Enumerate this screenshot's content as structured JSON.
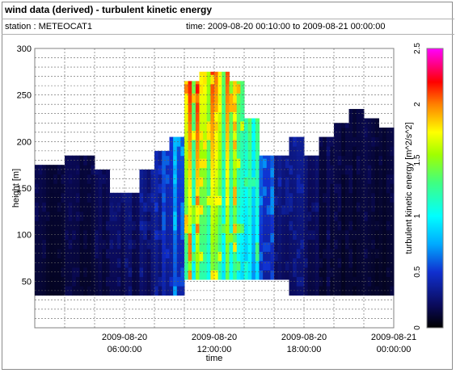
{
  "header": {
    "title": "wind data (derived) - turbulent kinetic energy",
    "station": "station : METEOCAT1",
    "time_range": "time: 2009-08-20 00:10:00 to 2009-08-21 00:00:00"
  },
  "chart_data": {
    "type": "heatmap",
    "xlabel": "time",
    "ylabel": "height [m]",
    "colorbar_label": "turbulent kinetic energy [m^2/s^2]",
    "xlim_hours": [
      0,
      24
    ],
    "ylim": [
      0,
      300
    ],
    "color_range": [
      0,
      2.5
    ],
    "grid": true,
    "x_ticks": [
      {
        "hour": 6,
        "line1": "2009-08-20",
        "line2": "06:00:00"
      },
      {
        "hour": 12,
        "line1": "2009-08-20",
        "line2": "12:00:00"
      },
      {
        "hour": 18,
        "line1": "2009-08-20",
        "line2": "18:00:00"
      },
      {
        "hour": 24,
        "line1": "2009-08-21",
        "line2": "00:00:00"
      }
    ],
    "y_ticks": [
      50,
      100,
      150,
      200,
      250,
      300
    ],
    "colorbar_ticks": [
      "0",
      "0.5",
      "1",
      "1.5",
      "2",
      "2.5"
    ],
    "columns_hours_start": [
      0,
      1,
      2,
      3,
      4,
      5,
      6,
      7,
      8,
      9,
      10,
      11,
      12,
      13,
      14,
      15,
      16,
      17,
      18,
      19,
      20,
      21,
      22,
      23
    ],
    "bottom_height": [
      35,
      35,
      35,
      35,
      35,
      35,
      35,
      35,
      35,
      35,
      52,
      52,
      52,
      52,
      52,
      52,
      52,
      35,
      35,
      35,
      35,
      35,
      35,
      35
    ],
    "top_height": [
      175,
      175,
      185,
      185,
      170,
      145,
      145,
      170,
      190,
      205,
      265,
      275,
      275,
      265,
      225,
      185,
      185,
      205,
      185,
      205,
      220,
      235,
      225,
      215
    ],
    "column_tke_mean": [
      0.12,
      0.12,
      0.14,
      0.14,
      0.16,
      0.18,
      0.22,
      0.28,
      0.4,
      0.55,
      1.55,
      1.45,
      1.4,
      1.35,
      0.95,
      0.45,
      0.32,
      0.25,
      0.2,
      0.15,
      0.12,
      0.12,
      0.12,
      0.12
    ],
    "column_tke_peak": [
      0.2,
      0.18,
      0.2,
      0.22,
      0.25,
      0.28,
      0.3,
      0.4,
      0.6,
      0.85,
      2.0,
      1.8,
      1.75,
      1.9,
      1.3,
      0.7,
      0.5,
      0.4,
      0.35,
      0.25,
      0.2,
      0.2,
      0.2,
      0.18
    ]
  }
}
